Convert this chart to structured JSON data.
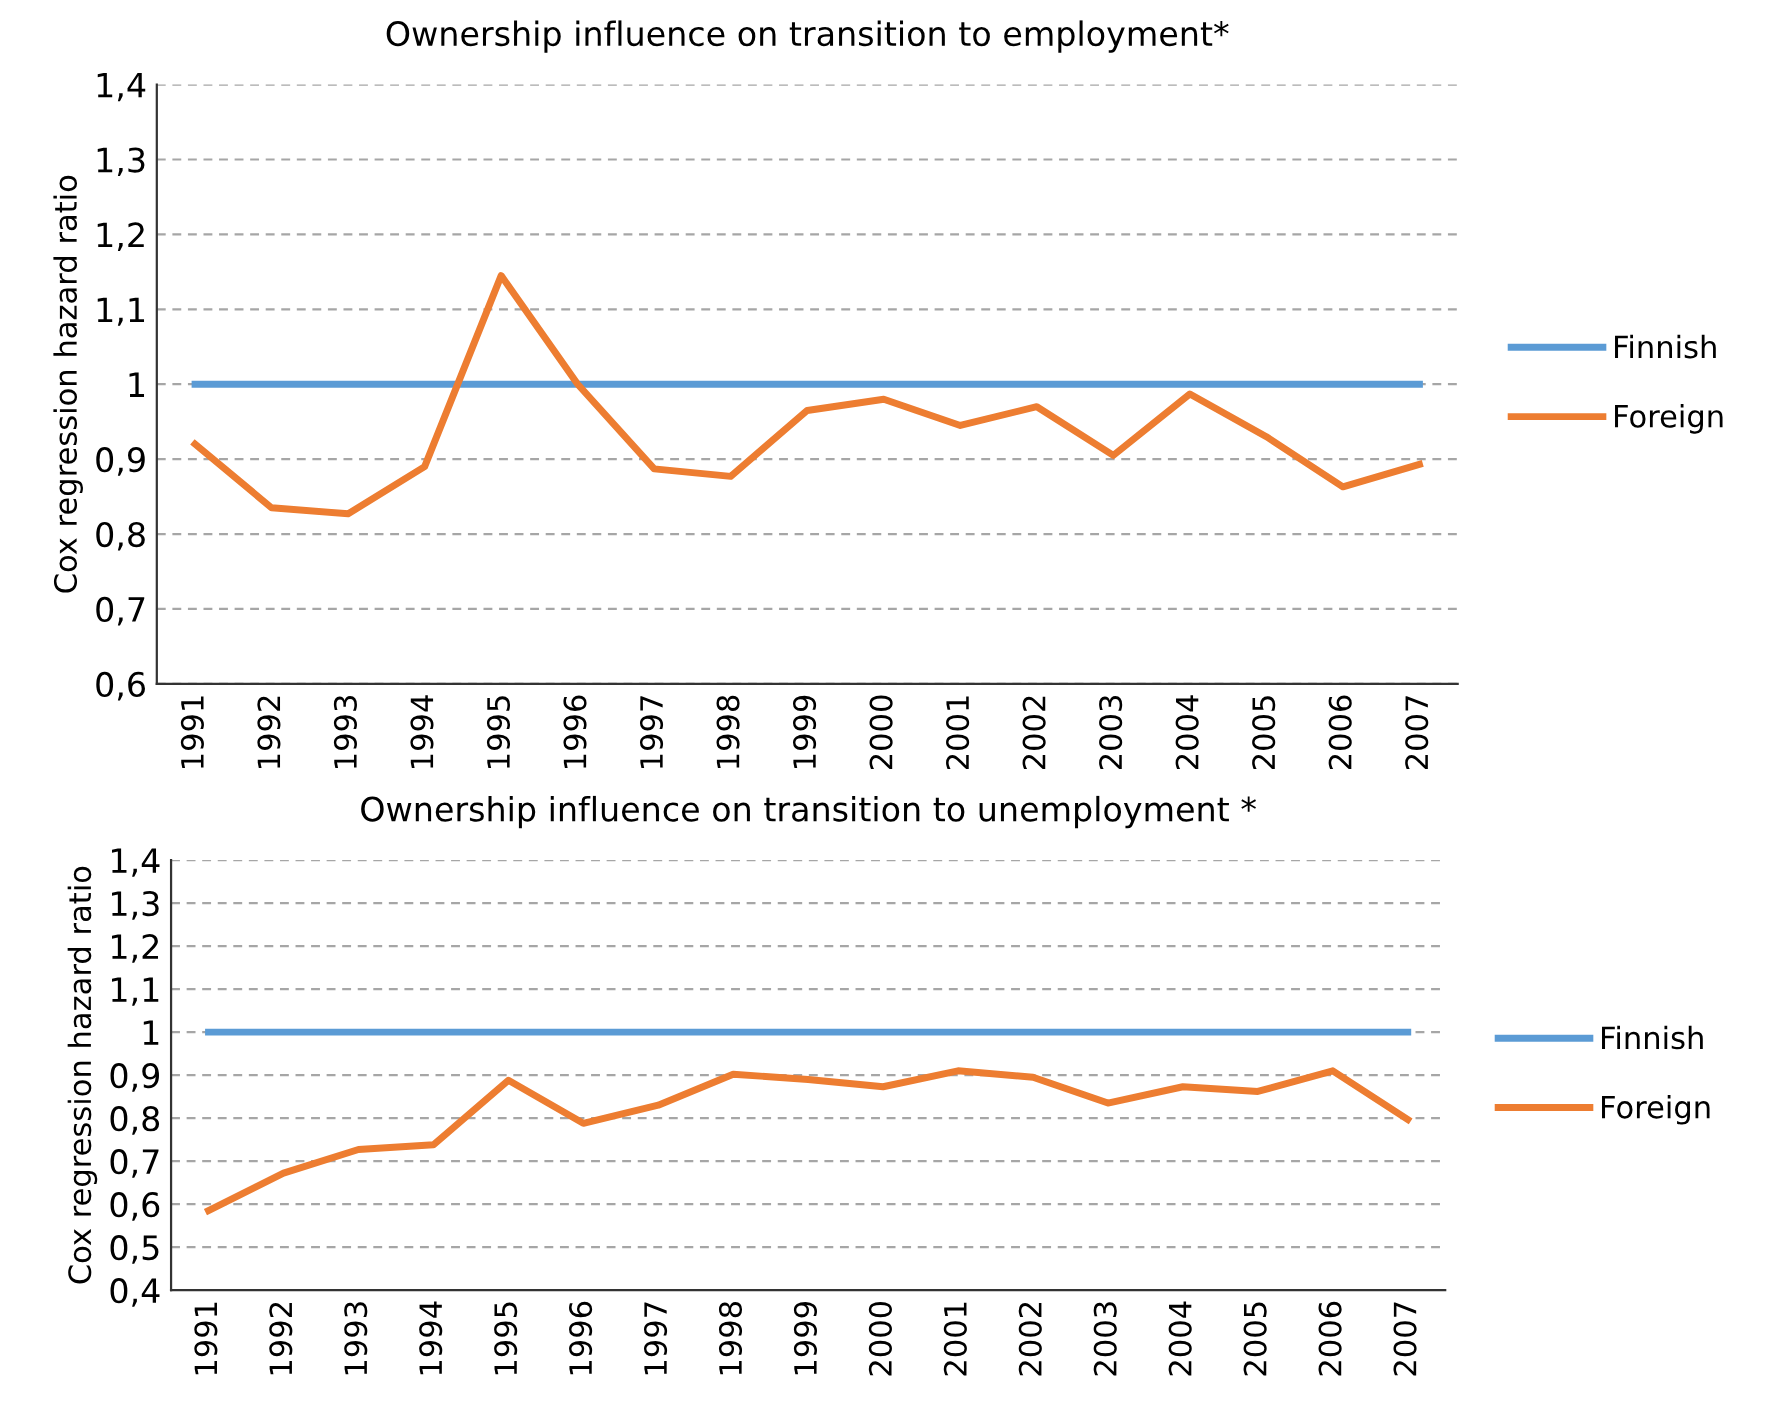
{
  "chart_data": [
    {
      "type": "line",
      "title": "Ownership influence on transition to employment*",
      "ylabel": "Cox regression hazard ratio",
      "categories": [
        "1991",
        "1992",
        "1993",
        "1994",
        "1995",
        "1996",
        "1997",
        "1998",
        "1999",
        "2000",
        "2001",
        "2002",
        "2003",
        "2004",
        "2005",
        "2006",
        "2007"
      ],
      "series": [
        {
          "name": "Finnish",
          "color": "#5b9bd5",
          "values": [
            1,
            1,
            1,
            1,
            1,
            1,
            1,
            1,
            1,
            1,
            1,
            1,
            1,
            1,
            1,
            1,
            1
          ]
        },
        {
          "name": "Foreign",
          "color": "#ed7d31",
          "values": [
            0.92,
            0.835,
            0.827,
            0.89,
            1.145,
            1.0,
            0.887,
            0.877,
            0.965,
            0.98,
            0.945,
            0.97,
            0.905,
            0.987,
            0.93,
            0.863,
            0.893
          ]
        }
      ],
      "ylim": [
        0.6,
        1.4
      ],
      "yticks": [
        {
          "value": 0.6,
          "label": "0,6"
        },
        {
          "value": 0.7,
          "label": "0,7"
        },
        {
          "value": 0.8,
          "label": "0,8"
        },
        {
          "value": 0.9,
          "label": "0,9"
        },
        1,
        {
          "value": 1.1,
          "label": "1,1"
        },
        {
          "value": 1.2,
          "label": "1,2"
        },
        {
          "value": 1.3,
          "label": "1,3"
        },
        {
          "value": 1.4,
          "label": "1,4"
        }
      ],
      "grid": "y",
      "legend": "right",
      "marker": "none",
      "line_style": "solid"
    },
    {
      "type": "line",
      "title": "Ownership influence on transition to unemployment *",
      "ylabel": "Cox regression hazard ratio",
      "categories": [
        "1991",
        "1992",
        "1993",
        "1994",
        "1995",
        "1996",
        "1997",
        "1998",
        "1999",
        "2000",
        "2001",
        "2002",
        "2003",
        "2004",
        "2005",
        "2006",
        "2007"
      ],
      "series": [
        {
          "name": "Finnish",
          "color": "#5b9bd5",
          "values": [
            1,
            1,
            1,
            1,
            1,
            1,
            1,
            1,
            1,
            1,
            1,
            1,
            1,
            1,
            1,
            1,
            1
          ]
        },
        {
          "name": "Foreign",
          "color": "#ed7d31",
          "values": [
            0.585,
            0.672,
            0.727,
            0.738,
            0.888,
            0.788,
            0.83,
            0.902,
            0.89,
            0.873,
            0.91,
            0.895,
            0.835,
            0.873,
            0.862,
            0.91,
            0.797
          ]
        }
      ],
      "ylim": [
        0.4,
        1.4
      ],
      "yticks": [
        {
          "value": 0.4,
          "label": "0,4"
        },
        {
          "value": 0.5,
          "label": "0,5"
        },
        {
          "value": 0.6,
          "label": "0,6"
        },
        {
          "value": 0.7,
          "label": "0,7"
        },
        {
          "value": 0.8,
          "label": "0,8"
        },
        {
          "value": 0.9,
          "label": "0,9"
        },
        1,
        {
          "value": 1.1,
          "label": "1,1"
        },
        {
          "value": 1.2,
          "label": "1,2"
        },
        {
          "value": 1.3,
          "label": "1,3"
        },
        {
          "value": 1.4,
          "label": "1,4"
        }
      ],
      "grid": "y",
      "legend": "right",
      "marker": "none",
      "line_style": "solid"
    }
  ]
}
